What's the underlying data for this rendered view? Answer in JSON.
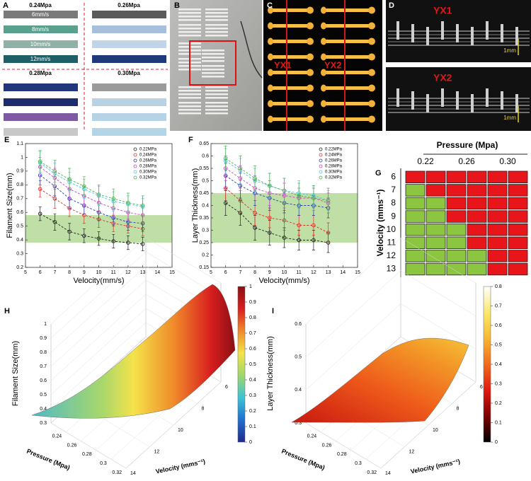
{
  "panels": {
    "A": {
      "label": "A",
      "groups": [
        {
          "title": "0.24Mpa",
          "bars": [
            {
              "label": "6mm/s",
              "color": "#7a7a7a"
            },
            {
              "label": "8mm/s",
              "color": "#59a08f"
            },
            {
              "label": "10mm/s",
              "color": "#8fb1a7"
            },
            {
              "label": "12mm/s",
              "color": "#1f5f68"
            }
          ]
        },
        {
          "title": "0.26Mpa",
          "bars": [
            {
              "color": "#5b5b5b"
            },
            {
              "color": "#a6bfdc"
            },
            {
              "color": "#c0d6e8"
            },
            {
              "color": "#1e3a7a"
            }
          ]
        },
        {
          "title": "0.28Mpa",
          "bars": [
            {
              "color": "#22367e"
            },
            {
              "color": "#1d2c6c"
            },
            {
              "color": "#7d5aa3"
            },
            {
              "color": "#c8c8c8"
            }
          ]
        },
        {
          "title": "0.30Mpa",
          "bars": [
            {
              "color": "#9a9a9a"
            },
            {
              "color": "#b8d2e4"
            },
            {
              "color": "#b6d3e6"
            },
            {
              "color": "#b2d6e8"
            }
          ]
        }
      ]
    },
    "B": {
      "label": "B"
    },
    "C": {
      "label": "C",
      "tags": [
        "YX1",
        "YX2"
      ]
    },
    "D": {
      "label": "D",
      "images": [
        {
          "tag": "YX1",
          "scale": "1mm"
        },
        {
          "tag": "YX2",
          "scale": "1mm"
        }
      ]
    }
  },
  "chart_data": [
    {
      "panel_label": "E",
      "type": "line",
      "x_label": "Velocity(mm/s)",
      "y_label": "Filament Size(mm)",
      "x": [
        6,
        7,
        8,
        9,
        10,
        11,
        12,
        13
      ],
      "series": [
        {
          "name": "0.22MPa",
          "color": "#222222",
          "values": [
            0.59,
            0.53,
            0.46,
            0.43,
            0.41,
            0.39,
            0.38,
            0.37
          ],
          "errors": [
            0.05,
            0.06,
            0.06,
            0.05,
            0.05,
            0.05,
            0.05,
            0.05
          ]
        },
        {
          "name": "0.24MPa",
          "color": "#e0302a",
          "values": [
            0.77,
            0.7,
            0.63,
            0.58,
            0.55,
            0.52,
            0.5,
            0.48
          ],
          "errors": [
            0.06,
            0.07,
            0.06,
            0.06,
            0.06,
            0.06,
            0.05,
            0.05
          ]
        },
        {
          "name": "0.26MPa",
          "color": "#2b3fb0",
          "values": [
            0.87,
            0.79,
            0.7,
            0.65,
            0.6,
            0.56,
            0.53,
            0.52
          ],
          "errors": [
            0.07,
            0.07,
            0.07,
            0.06,
            0.06,
            0.06,
            0.06,
            0.06
          ]
        },
        {
          "name": "0.28MPa",
          "color": "#d040c8",
          "values": [
            0.93,
            0.85,
            0.77,
            0.72,
            0.67,
            0.63,
            0.6,
            0.58
          ],
          "errors": [
            0.07,
            0.07,
            0.07,
            0.07,
            0.06,
            0.06,
            0.06,
            0.06
          ]
        },
        {
          "name": "0.30MPa",
          "color": "#4cc8e0",
          "values": [
            0.96,
            0.88,
            0.82,
            0.77,
            0.72,
            0.68,
            0.66,
            0.64
          ],
          "errors": [
            0.08,
            0.08,
            0.07,
            0.07,
            0.07,
            0.07,
            0.06,
            0.06
          ]
        },
        {
          "name": "0.32MPa",
          "color": "#4caf50",
          "values": [
            0.97,
            0.9,
            0.84,
            0.79,
            0.73,
            0.7,
            0.67,
            0.65
          ],
          "errors": [
            0.08,
            0.08,
            0.08,
            0.07,
            0.07,
            0.07,
            0.07,
            0.07
          ]
        }
      ],
      "xlim": [
        5,
        15
      ],
      "xticks": [
        5,
        6,
        7,
        8,
        9,
        10,
        11,
        12,
        13,
        14,
        15
      ],
      "ylim": [
        0.2,
        1.1
      ],
      "yticks": [
        0.2,
        0.3,
        0.4,
        0.5,
        0.6,
        0.7,
        0.8,
        0.9,
        1,
        1.1
      ],
      "shaded_range": [
        0.38,
        0.58
      ],
      "shade_color": "#a9d48a",
      "legend": "upper right"
    },
    {
      "panel_label": "F",
      "type": "line",
      "x_label": "Velocity(mm/s)",
      "y_label": "Layer Thickness(mm)",
      "x": [
        6,
        7,
        8,
        9,
        10,
        11,
        12,
        13
      ],
      "series": [
        {
          "name": "0.22MPa",
          "color": "#222222",
          "values": [
            0.41,
            0.37,
            0.31,
            0.29,
            0.27,
            0.26,
            0.26,
            0.25
          ],
          "errors": [
            0.05,
            0.05,
            0.05,
            0.05,
            0.04,
            0.04,
            0.04,
            0.04
          ]
        },
        {
          "name": "0.24MPa",
          "color": "#e0302a",
          "values": [
            0.47,
            0.42,
            0.37,
            0.35,
            0.34,
            0.32,
            0.32,
            0.29
          ],
          "errors": [
            0.05,
            0.05,
            0.05,
            0.04,
            0.04,
            0.04,
            0.04,
            0.04
          ]
        },
        {
          "name": "0.26MPa",
          "color": "#2b3fb0",
          "values": [
            0.52,
            0.48,
            0.45,
            0.43,
            0.41,
            0.4,
            0.4,
            0.39
          ],
          "errors": [
            0.05,
            0.05,
            0.05,
            0.05,
            0.04,
            0.04,
            0.04,
            0.04
          ]
        },
        {
          "name": "0.28MPa",
          "color": "#d040c8",
          "values": [
            0.55,
            0.51,
            0.47,
            0.45,
            0.44,
            0.43,
            0.43,
            0.41
          ],
          "errors": [
            0.05,
            0.05,
            0.05,
            0.05,
            0.05,
            0.04,
            0.04,
            0.04
          ]
        },
        {
          "name": "0.30MPa",
          "color": "#4cc8e0",
          "values": [
            0.58,
            0.54,
            0.5,
            0.48,
            0.46,
            0.45,
            0.44,
            0.42
          ],
          "errors": [
            0.05,
            0.05,
            0.05,
            0.05,
            0.05,
            0.05,
            0.04,
            0.04
          ]
        },
        {
          "name": "0.32MPa",
          "color": "#4caf50",
          "values": [
            0.59,
            0.55,
            0.51,
            0.48,
            0.46,
            0.44,
            0.43,
            0.42
          ],
          "errors": [
            0.05,
            0.05,
            0.05,
            0.05,
            0.05,
            0.05,
            0.05,
            0.05
          ]
        }
      ],
      "xlim": [
        5,
        15
      ],
      "xticks": [
        5,
        6,
        7,
        8,
        9,
        10,
        11,
        12,
        13,
        14,
        15
      ],
      "ylim": [
        0.15,
        0.65
      ],
      "yticks": [
        0.15,
        0.2,
        0.25,
        0.3,
        0.35,
        0.4,
        0.45,
        0.5,
        0.55,
        0.6,
        0.65
      ],
      "shaded_range": [
        0.25,
        0.45
      ],
      "shade_color": "#a9d48a",
      "legend": "upper right"
    },
    {
      "panel_label": "G",
      "type": "heatmap",
      "title": "Pressure (Mpa)",
      "y_label": "Velocity (mms⁻¹)",
      "columns": [
        "0.22",
        null,
        "0.26",
        null,
        "0.30",
        null
      ],
      "rows": [
        6,
        7,
        8,
        9,
        10,
        11,
        12,
        13
      ],
      "cell_colors": [
        [
          "#e8161b",
          "#e8161b",
          "#e8161b",
          "#e8161b",
          "#e8161b",
          "#e8161b"
        ],
        [
          "#8cc540",
          "#e8161b",
          "#e8161b",
          "#e8161b",
          "#e8161b",
          "#e8161b"
        ],
        [
          "#8cc540",
          "#8cc540",
          "#e8161b",
          "#e8161b",
          "#e8161b",
          "#e8161b"
        ],
        [
          "#8cc540",
          "#8cc540",
          "#e8161b",
          "#e8161b",
          "#e8161b",
          "#e8161b"
        ],
        [
          "#8cc540",
          "#8cc540",
          "#8cc540",
          "#e8161b",
          "#e8161b",
          "#e8161b"
        ],
        [
          "#8cc540",
          "#8cc540",
          "#8cc540",
          "#e8161b",
          "#e8161b",
          "#e8161b"
        ],
        [
          "#8cc540",
          "#8cc540",
          "#8cc540",
          "#8cc540",
          "#e8161b",
          "#e8161b"
        ],
        [
          "#8cc540",
          "#8cc540",
          "#8cc540",
          "#8cc540",
          "#e8161b",
          "#e8161b"
        ]
      ]
    },
    {
      "panel_label": "H",
      "type": "surface",
      "z_label": "Filament Size(mm)",
      "y_label": "Pressure (Mpa)",
      "x_label": "Velocity (mms⁻¹)",
      "xlim": [
        6,
        14
      ],
      "xticks": [
        6,
        8,
        10,
        12,
        14
      ],
      "ylim": [
        0.22,
        0.32
      ],
      "yticks": [
        0.24,
        0.26,
        0.28,
        0.3,
        0.32
      ],
      "zlim": [
        0.3,
        1
      ],
      "zticks": [
        0.3,
        0.4,
        0.5,
        0.6,
        0.7,
        0.8,
        0.9,
        1
      ],
      "colorbar": {
        "lim": [
          0,
          1
        ],
        "ticks": [
          0,
          0.1,
          0.2,
          0.3,
          0.4,
          0.5,
          0.6,
          0.7,
          0.8,
          0.9,
          1
        ],
        "colors": [
          "#1f2a8c",
          "#1f6fd0",
          "#3cc3d6",
          "#9fd86a",
          "#f4e34a",
          "#f08a2a",
          "#d81f1f",
          "#8b0f14"
        ]
      }
    },
    {
      "panel_label": "I",
      "type": "surface",
      "z_label": "Layer Thickness(mm)",
      "y_label": "Pressure (Mpa)",
      "x_label": "Velocity (mms⁻¹)",
      "xlim": [
        6,
        14
      ],
      "xticks": [
        6,
        8,
        10,
        12,
        14
      ],
      "ylim": [
        0.22,
        0.32
      ],
      "yticks": [
        0.24,
        0.26,
        0.28,
        0.3,
        0.32
      ],
      "zlim": [
        0.3,
        0.6
      ],
      "zticks": [
        0.3,
        0.4,
        0.5,
        0.6
      ],
      "colorbar": {
        "lim": [
          0,
          0.8
        ],
        "ticks": [
          0,
          0.1,
          0.2,
          0.3,
          0.4,
          0.5,
          0.6,
          0.7,
          0.8
        ],
        "colors": [
          "#000000",
          "#7a0000",
          "#e01a10",
          "#f26a1b",
          "#f7b733",
          "#fbe86a",
          "#ffffff"
        ]
      }
    }
  ]
}
